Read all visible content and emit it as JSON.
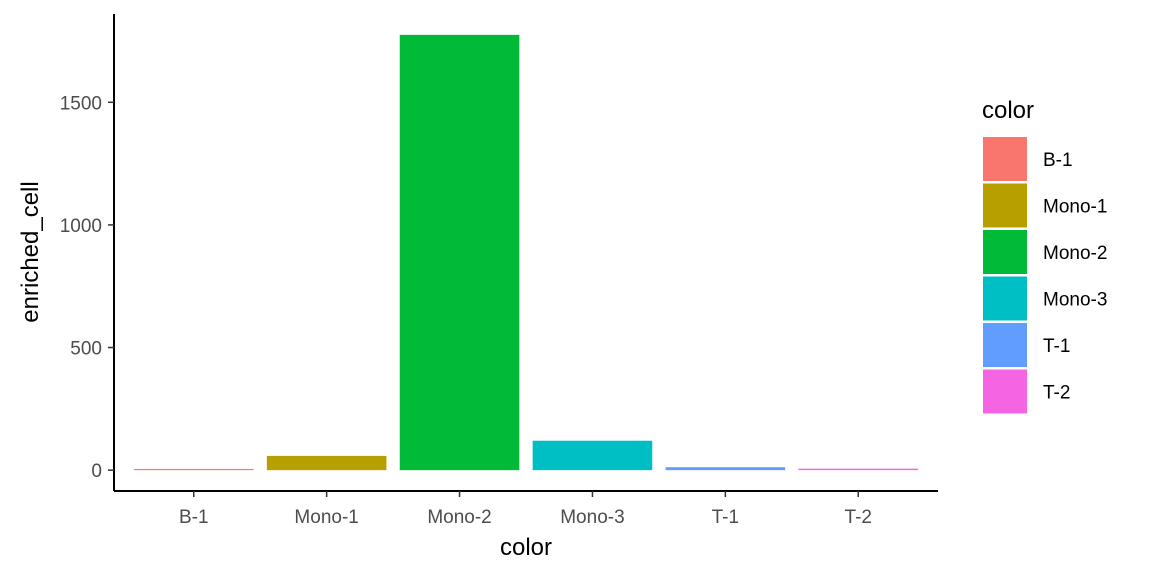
{
  "chart_data": {
    "type": "bar",
    "categories": [
      "B-1",
      "Mono-1",
      "Mono-2",
      "Mono-3",
      "T-1",
      "T-2"
    ],
    "values": [
      5,
      58,
      1775,
      120,
      12,
      6
    ],
    "colors": [
      "#F8766D",
      "#B79F00",
      "#00BA38",
      "#00BFC4",
      "#619CFF",
      "#F564E3"
    ],
    "title": "",
    "xlabel": "color",
    "ylabel": "enriched_cell",
    "ylim": [
      -85,
      1860
    ],
    "yticks": [
      0,
      500,
      1000,
      1500
    ],
    "grid": false,
    "legend": {
      "title": "color",
      "position": "right",
      "entries": [
        "B-1",
        "Mono-1",
        "Mono-2",
        "Mono-3",
        "T-1",
        "T-2"
      ]
    }
  }
}
